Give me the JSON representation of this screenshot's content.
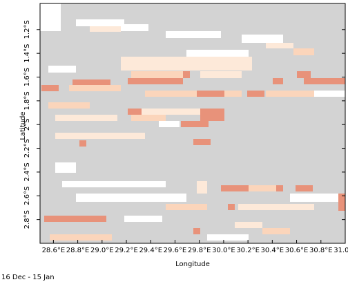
{
  "chart_data": {
    "type": "map",
    "x_label": "Longitude",
    "y_label": "Latitude",
    "footer": "16 Dec - 15 Jan",
    "xlim": [
      28.49,
      31.0
    ],
    "ylim": [
      -3.0,
      -0.98
    ],
    "xticks": [
      {
        "value": 28.6,
        "label": "28.6°E"
      },
      {
        "value": 28.8,
        "label": "28.8°E"
      },
      {
        "value": 29.0,
        "label": "29.0°E"
      },
      {
        "value": 29.2,
        "label": "29.2°E"
      },
      {
        "value": 29.4,
        "label": "29.4°E"
      },
      {
        "value": 29.6,
        "label": "29.6°E"
      },
      {
        "value": 29.8,
        "label": "29.8°E"
      },
      {
        "value": 30.0,
        "label": "30.0°E"
      },
      {
        "value": 30.2,
        "label": "30.2°E"
      },
      {
        "value": 30.4,
        "label": "30.4°E"
      },
      {
        "value": 30.6,
        "label": "30.6°E"
      },
      {
        "value": 30.8,
        "label": "30.8°E"
      },
      {
        "value": 31.0,
        "label": "31.0°E"
      }
    ],
    "yticks": [
      {
        "value": -1.2,
        "label": "1.2°S"
      },
      {
        "value": -1.4,
        "label": "1.4°S"
      },
      {
        "value": -1.6,
        "label": "1.6°S"
      },
      {
        "value": -1.8,
        "label": "1.8°S"
      },
      {
        "value": -2.0,
        "label": "2°S"
      },
      {
        "value": -2.2,
        "label": "2.2°S"
      },
      {
        "value": -2.4,
        "label": "2.4°S"
      },
      {
        "value": -2.6,
        "label": "2.6°S"
      },
      {
        "value": -2.8,
        "label": "2.8°S"
      }
    ]
  }
}
